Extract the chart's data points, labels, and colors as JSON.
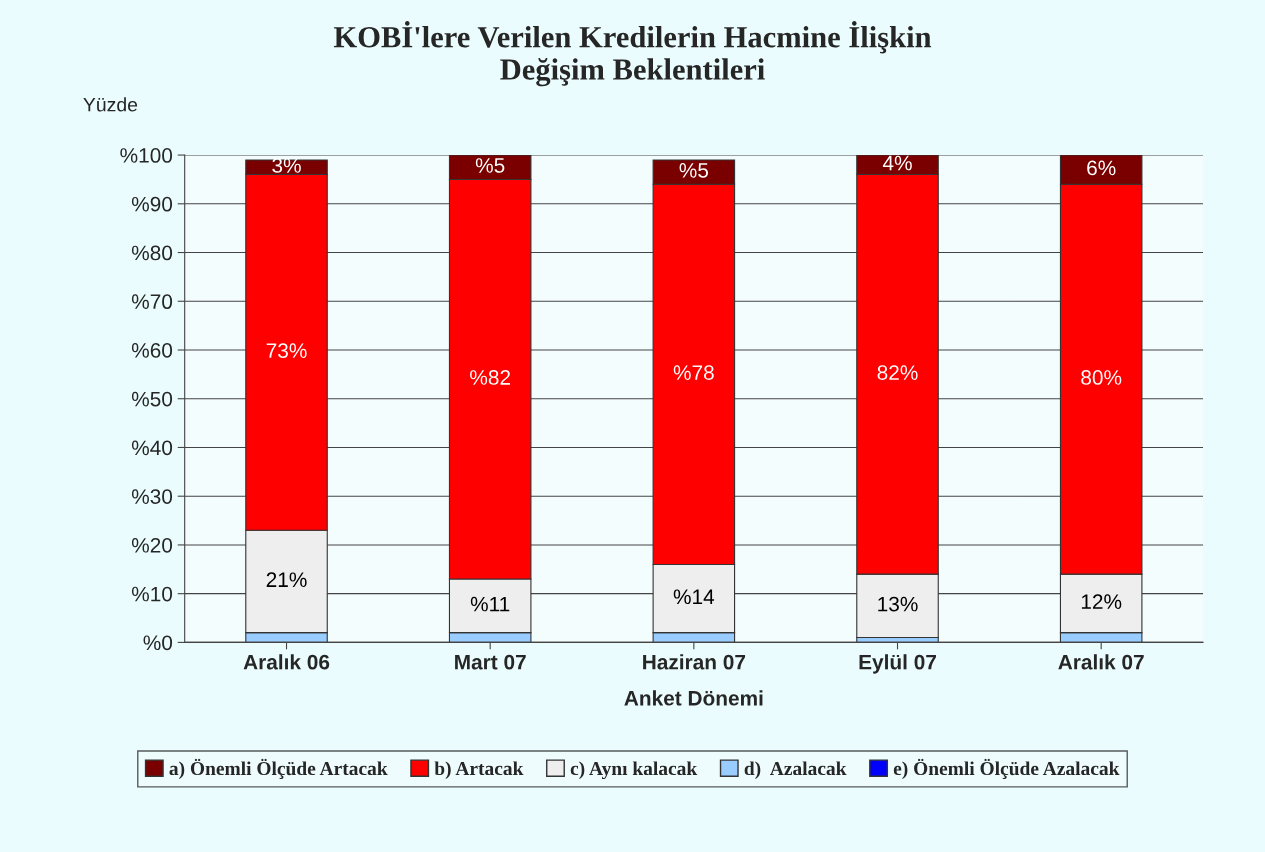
{
  "chart_data": {
    "type": "bar",
    "title": "KOBİ'lere Verilen Kredilerin Hacmine İlişkin\nDeğişim Beklentileri",
    "ylabel": "Yüzde",
    "xlabel": "Anket Dönemi",
    "categories": [
      "Aralık 06",
      "Mart 07",
      "Haziran 07",
      "Eylül 07",
      "Aralık 07"
    ],
    "stacked": true,
    "series": [
      {
        "name": "e) Önemli Ölçüde Azalacak",
        "color": "#0000ff",
        "values": [
          0,
          0,
          0,
          0,
          0
        ]
      },
      {
        "name": "d)  Azalacak",
        "color": "#99ccff",
        "values": [
          2,
          2,
          2,
          1,
          2
        ]
      },
      {
        "name": "c) Aynı kalacak",
        "color": "#eeeeee",
        "values": [
          21,
          11,
          14,
          13,
          12
        ],
        "value_labels": [
          "21%",
          "%11",
          "%14",
          "13%",
          "12%"
        ]
      },
      {
        "name": "b) Artacak",
        "color": "#ff0000",
        "values": [
          73,
          82,
          78,
          82,
          80
        ],
        "value_labels": [
          "73%",
          "%82",
          "%78",
          "82%",
          "80%"
        ]
      },
      {
        "name": "a) Önemli Ölçüde Artacak",
        "color": "#7a0000",
        "values": [
          3,
          5,
          5,
          4,
          6
        ],
        "value_labels": [
          "3%",
          "%5",
          "%5",
          "4%",
          "6%"
        ]
      }
    ],
    "ylim": [
      0,
      100
    ],
    "yticks": [
      {
        "value": 0,
        "label": "%0"
      },
      {
        "value": 10,
        "label": "%10"
      },
      {
        "value": 20,
        "label": "%20"
      },
      {
        "value": 30,
        "label": "%30"
      },
      {
        "value": 40,
        "label": "%40"
      },
      {
        "value": 50,
        "label": "%50"
      },
      {
        "value": 60,
        "label": "%60"
      },
      {
        "value": 70,
        "label": "%70"
      },
      {
        "value": 80,
        "label": "%80"
      },
      {
        "value": 90,
        "label": "%90"
      },
      {
        "value": 100,
        "label": "%100"
      }
    ],
    "grid": "y",
    "legend": "bottom"
  }
}
